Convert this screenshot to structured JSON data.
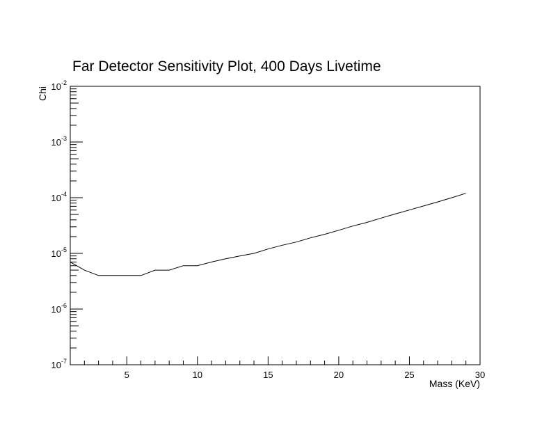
{
  "chart_data": {
    "type": "line",
    "title": "Far Detector Sensitivity Plot, 400 Days Livetime",
    "xlabel": "Mass (KeV)",
    "ylabel": "Chi",
    "xlim": [
      1,
      30
    ],
    "ylim": [
      1e-07,
      0.01
    ],
    "yscale": "log",
    "grid": false,
    "x_ticks": [
      5,
      10,
      15,
      20,
      25,
      30
    ],
    "x_tick_labels": [
      "5",
      "10",
      "15",
      "20",
      "25",
      "30"
    ],
    "y_ticks": [
      1e-07,
      1e-06,
      1e-05,
      0.0001,
      0.001,
      0.01
    ],
    "y_tick_labels": [
      {
        "base": "10",
        "exp": "-7"
      },
      {
        "base": "10",
        "exp": "-6"
      },
      {
        "base": "10",
        "exp": "-5"
      },
      {
        "base": "10",
        "exp": "-4"
      },
      {
        "base": "10",
        "exp": "-3"
      },
      {
        "base": "10",
        "exp": "-2"
      }
    ],
    "series": [
      {
        "color": "#000000",
        "x": [
          1,
          2,
          3,
          4,
          5,
          6,
          7,
          8,
          9,
          10,
          11,
          12,
          13,
          14,
          15,
          16,
          17,
          18,
          19,
          20,
          21,
          22,
          23,
          24,
          25,
          26,
          27,
          28,
          29
        ],
        "y": [
          7e-06,
          5e-06,
          4e-06,
          4e-06,
          4e-06,
          4e-06,
          5e-06,
          5e-06,
          6e-06,
          6e-06,
          7e-06,
          8e-06,
          9e-06,
          1e-05,
          1.2e-05,
          1.4e-05,
          1.6e-05,
          1.9e-05,
          2.2e-05,
          2.6e-05,
          3.1e-05,
          3.6e-05,
          4.3e-05,
          5.1e-05,
          6e-05,
          7.1e-05,
          8.4e-05,
          0.0001,
          0.00012
        ]
      }
    ]
  }
}
